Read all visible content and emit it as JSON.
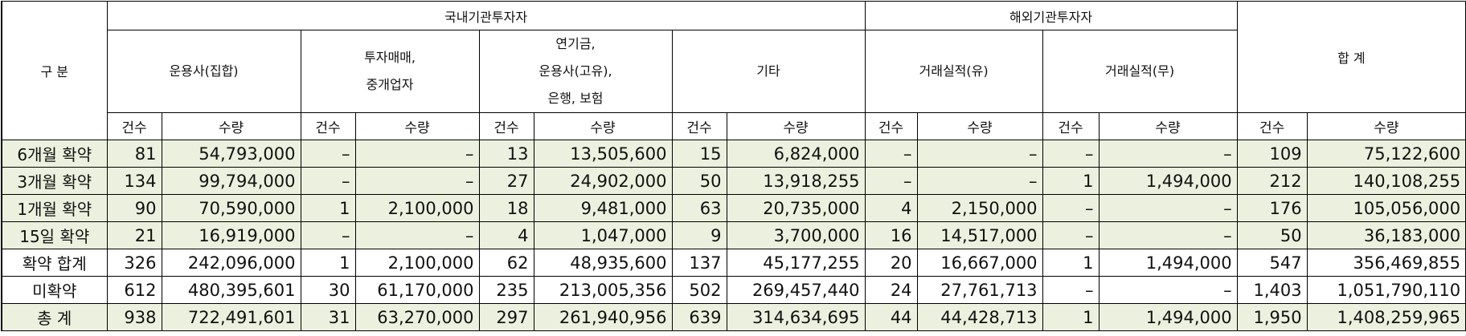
{
  "header": {
    "category": "구 분",
    "domestic_group": "국내기관투자자",
    "foreign_group": "해외기관투자자",
    "total": "합 계",
    "domestic_cols": {
      "asset_mgmt": "운용사(집합)",
      "broker_line1": "투자매매,",
      "broker_line2": "중개업자",
      "pension_line1": "연기금,",
      "pension_line2": "운용사(고유),",
      "pension_line3": "은행, 보험",
      "others": "기타"
    },
    "foreign_cols": {
      "with_record": "거래실적(유)",
      "without_record": "거래실적(무)"
    },
    "count_label": "건수",
    "qty_label": "수량"
  },
  "rows": [
    {
      "label": "6개월 확약",
      "style": "green",
      "cells": [
        "81",
        "54,793,000",
        "–",
        "–",
        "13",
        "13,505,600",
        "15",
        "6,824,000",
        "–",
        "–",
        "–",
        "–",
        "109",
        "75,122,600"
      ]
    },
    {
      "label": "3개월 확약",
      "style": "green",
      "cells": [
        "134",
        "99,794,000",
        "–",
        "–",
        "27",
        "24,902,000",
        "50",
        "13,918,255",
        "–",
        "–",
        "1",
        "1,494,000",
        "212",
        "140,108,255"
      ]
    },
    {
      "label": "1개월 확약",
      "style": "green",
      "cells": [
        "90",
        "70,590,000",
        "1",
        "2,100,000",
        "18",
        "9,481,000",
        "63",
        "20,735,000",
        "4",
        "2,150,000",
        "–",
        "–",
        "176",
        "105,056,000"
      ]
    },
    {
      "label": "15일 확약",
      "style": "green",
      "cells": [
        "21",
        "16,919,000",
        "–",
        "–",
        "4",
        "1,047,000",
        "9",
        "3,700,000",
        "16",
        "14,517,000",
        "–",
        "–",
        "50",
        "36,183,000"
      ]
    },
    {
      "label": "확약 합계",
      "style": "white",
      "cells": [
        "326",
        "242,096,000",
        "1",
        "2,100,000",
        "62",
        "48,935,600",
        "137",
        "45,177,255",
        "20",
        "16,667,000",
        "1",
        "1,494,000",
        "547",
        "356,469,855"
      ]
    },
    {
      "label": "미확약",
      "style": "white",
      "cells": [
        "612",
        "480,395,601",
        "30",
        "61,170,000",
        "235",
        "213,005,356",
        "502",
        "269,457,440",
        "24",
        "27,761,713",
        "–",
        "–",
        "1,403",
        "1,051,790,110"
      ]
    },
    {
      "label": "총 계",
      "style": "green",
      "cells": [
        "938",
        "722,491,601",
        "31",
        "63,270,000",
        "297",
        "261,940,956",
        "639",
        "314,634,695",
        "44",
        "44,428,713",
        "1",
        "1,494,000",
        "1,950",
        "1,408,259,965"
      ]
    }
  ]
}
